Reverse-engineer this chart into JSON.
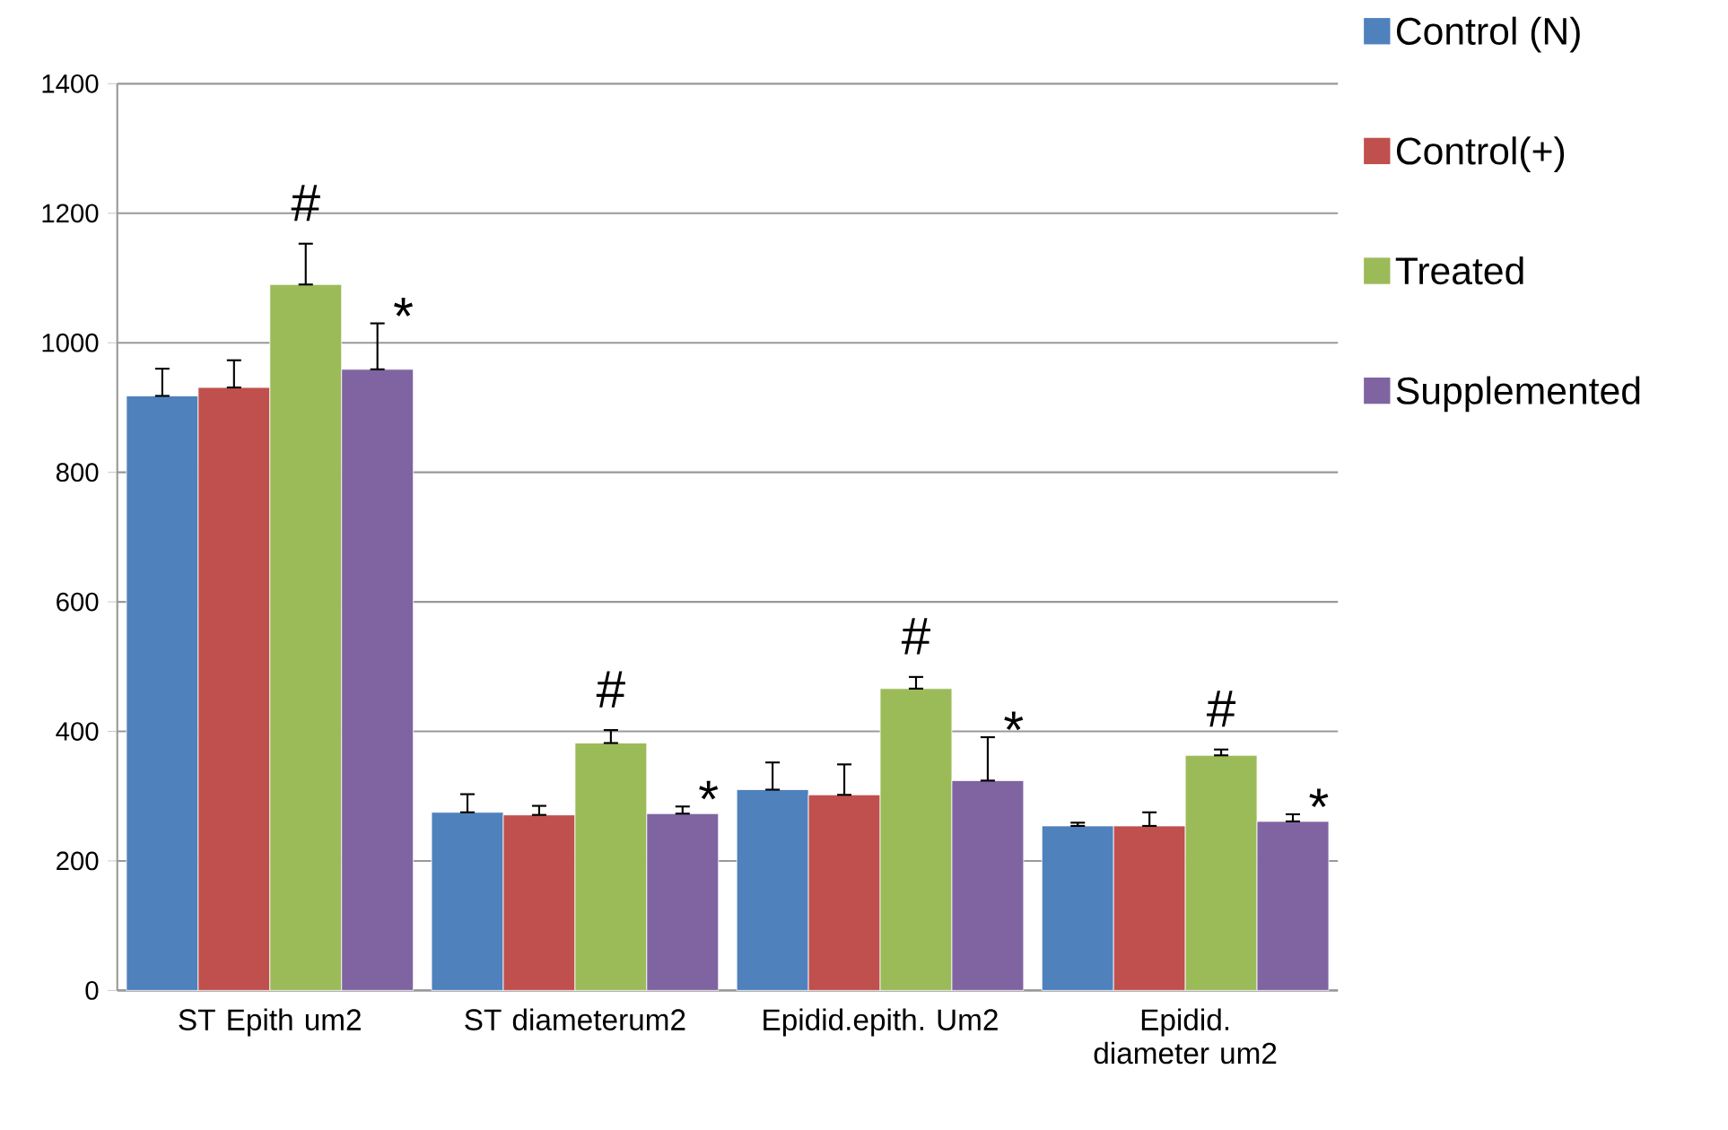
{
  "chart_data": {
    "type": "bar",
    "categories": [
      "ST Epith um2",
      "ST diameterum2",
      "Epidid.epith. Um2",
      "Epidid. diameter um2"
    ],
    "series": [
      {
        "name": "Control (N)",
        "color": "#4f81bd",
        "values": [
          918,
          275,
          310,
          254
        ],
        "errors": [
          [
            918,
            960
          ],
          [
            275,
            303
          ],
          [
            310,
            352
          ],
          [
            254,
            259
          ]
        ]
      },
      {
        "name": "Control(+)",
        "color": "#c0504d",
        "values": [
          931,
          271,
          302,
          254
        ],
        "errors": [
          [
            931,
            973
          ],
          [
            271,
            285
          ],
          [
            302,
            349
          ],
          [
            254,
            275
          ]
        ]
      },
      {
        "name": "Treated",
        "color": "#9bbb59",
        "values": [
          1090,
          382,
          466,
          363
        ],
        "errors": [
          [
            1090,
            1153
          ],
          [
            382,
            402
          ],
          [
            466,
            484
          ],
          [
            363,
            372
          ]
        ]
      },
      {
        "name": "Supplemented",
        "color": "#8064a2",
        "values": [
          959,
          273,
          324,
          261
        ],
        "errors": [
          [
            959,
            1030
          ],
          [
            273,
            284
          ],
          [
            324,
            391
          ],
          [
            261,
            272
          ]
        ]
      }
    ],
    "ylim": [
      0,
      1400
    ],
    "yticks": [
      0,
      200,
      400,
      600,
      800,
      1000,
      1200,
      1400
    ],
    "grid": "y",
    "legend": "right",
    "annotations": [
      "#",
      "*",
      "#",
      "*",
      "#",
      "*",
      "#",
      "*"
    ]
  }
}
